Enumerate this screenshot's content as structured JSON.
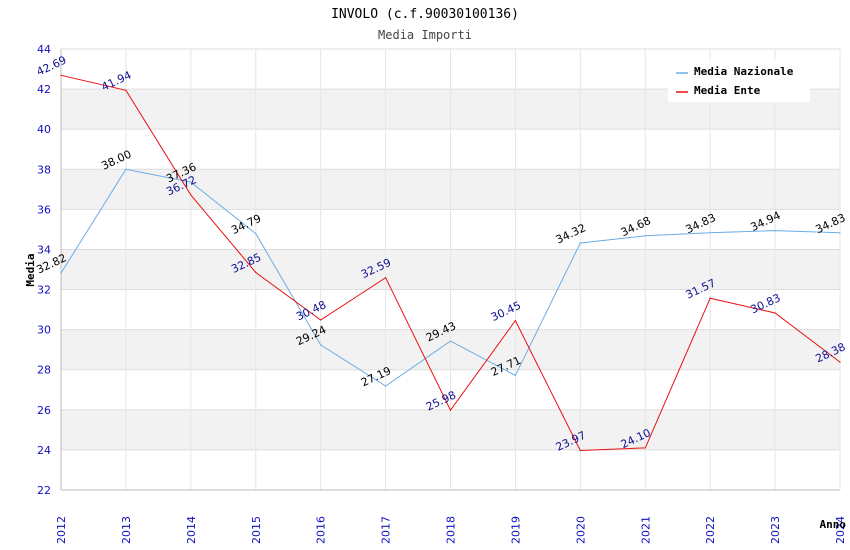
{
  "chart_data": {
    "type": "line",
    "title": "INVOLO (c.f.90030100136)",
    "subtitle": "Media Importi",
    "xlabel": "Anno",
    "ylabel": "Media",
    "ylim": [
      22,
      44
    ],
    "yticks": [
      "22",
      "24",
      "26",
      "28",
      "30",
      "32",
      "34",
      "36",
      "38",
      "40",
      "42",
      "44"
    ],
    "categories": [
      "2012",
      "2013",
      "2014",
      "2015",
      "2016",
      "2017",
      "2018",
      "2019",
      "2020",
      "2021",
      "2022",
      "2023",
      "2024"
    ],
    "grid": true,
    "legend_position": "top-right",
    "series": [
      {
        "name": "Media Nazionale",
        "color": "#6aaee8",
        "values": [
          32.82,
          38.0,
          37.36,
          34.79,
          29.24,
          27.19,
          29.43,
          27.71,
          34.32,
          34.68,
          34.83,
          34.94,
          34.83
        ],
        "labels": [
          "32.82",
          "38.00",
          "37.36",
          "34.79",
          "29.24",
          "27.19",
          "29.43",
          "27.71",
          "34.32",
          "34.68",
          "34.83",
          "34.94",
          "34.83"
        ]
      },
      {
        "name": "Media Ente",
        "color": "#e81010",
        "values": [
          42.69,
          41.94,
          36.72,
          32.85,
          30.48,
          32.59,
          25.98,
          30.45,
          23.97,
          24.1,
          31.57,
          30.83,
          28.38
        ],
        "labels": [
          "42.69",
          "41.94",
          "36.72",
          "32.85",
          "30.48",
          "32.59",
          "25.98",
          "30.45",
          "23.97",
          "24.10",
          "31.57",
          "30.83",
          "28.38"
        ]
      }
    ]
  }
}
